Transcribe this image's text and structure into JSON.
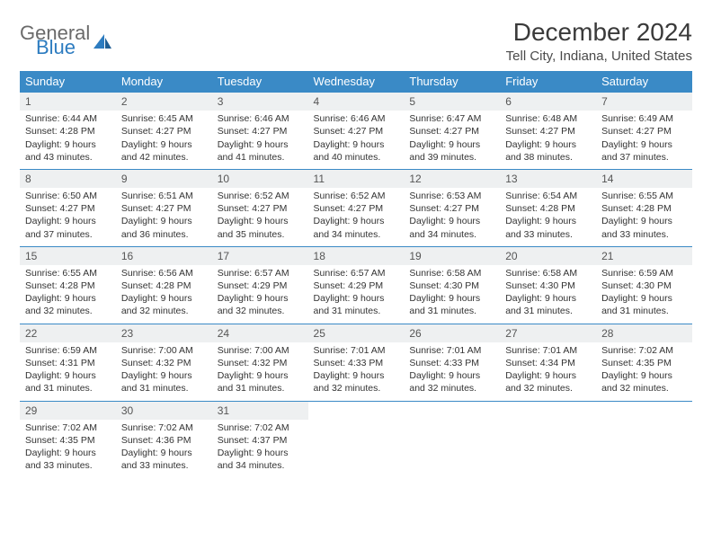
{
  "brand": {
    "general": "General",
    "blue": "Blue"
  },
  "title": "December 2024",
  "location": "Tell City, Indiana, United States",
  "colors": {
    "header_bg": "#3a8ac6",
    "header_text": "#ffffff",
    "daynum_bg": "#eef0f1",
    "border": "#3a8ac6",
    "logo_gray": "#6a6a6a",
    "logo_blue": "#2d7cc0"
  },
  "day_headers": [
    "Sunday",
    "Monday",
    "Tuesday",
    "Wednesday",
    "Thursday",
    "Friday",
    "Saturday"
  ],
  "weeks": [
    [
      {
        "n": "1",
        "sr": "6:44 AM",
        "ss": "4:28 PM",
        "dl": "9 hours and 43 minutes."
      },
      {
        "n": "2",
        "sr": "6:45 AM",
        "ss": "4:27 PM",
        "dl": "9 hours and 42 minutes."
      },
      {
        "n": "3",
        "sr": "6:46 AM",
        "ss": "4:27 PM",
        "dl": "9 hours and 41 minutes."
      },
      {
        "n": "4",
        "sr": "6:46 AM",
        "ss": "4:27 PM",
        "dl": "9 hours and 40 minutes."
      },
      {
        "n": "5",
        "sr": "6:47 AM",
        "ss": "4:27 PM",
        "dl": "9 hours and 39 minutes."
      },
      {
        "n": "6",
        "sr": "6:48 AM",
        "ss": "4:27 PM",
        "dl": "9 hours and 38 minutes."
      },
      {
        "n": "7",
        "sr": "6:49 AM",
        "ss": "4:27 PM",
        "dl": "9 hours and 37 minutes."
      }
    ],
    [
      {
        "n": "8",
        "sr": "6:50 AM",
        "ss": "4:27 PM",
        "dl": "9 hours and 37 minutes."
      },
      {
        "n": "9",
        "sr": "6:51 AM",
        "ss": "4:27 PM",
        "dl": "9 hours and 36 minutes."
      },
      {
        "n": "10",
        "sr": "6:52 AM",
        "ss": "4:27 PM",
        "dl": "9 hours and 35 minutes."
      },
      {
        "n": "11",
        "sr": "6:52 AM",
        "ss": "4:27 PM",
        "dl": "9 hours and 34 minutes."
      },
      {
        "n": "12",
        "sr": "6:53 AM",
        "ss": "4:27 PM",
        "dl": "9 hours and 34 minutes."
      },
      {
        "n": "13",
        "sr": "6:54 AM",
        "ss": "4:28 PM",
        "dl": "9 hours and 33 minutes."
      },
      {
        "n": "14",
        "sr": "6:55 AM",
        "ss": "4:28 PM",
        "dl": "9 hours and 33 minutes."
      }
    ],
    [
      {
        "n": "15",
        "sr": "6:55 AM",
        "ss": "4:28 PM",
        "dl": "9 hours and 32 minutes."
      },
      {
        "n": "16",
        "sr": "6:56 AM",
        "ss": "4:28 PM",
        "dl": "9 hours and 32 minutes."
      },
      {
        "n": "17",
        "sr": "6:57 AM",
        "ss": "4:29 PM",
        "dl": "9 hours and 32 minutes."
      },
      {
        "n": "18",
        "sr": "6:57 AM",
        "ss": "4:29 PM",
        "dl": "9 hours and 31 minutes."
      },
      {
        "n": "19",
        "sr": "6:58 AM",
        "ss": "4:30 PM",
        "dl": "9 hours and 31 minutes."
      },
      {
        "n": "20",
        "sr": "6:58 AM",
        "ss": "4:30 PM",
        "dl": "9 hours and 31 minutes."
      },
      {
        "n": "21",
        "sr": "6:59 AM",
        "ss": "4:30 PM",
        "dl": "9 hours and 31 minutes."
      }
    ],
    [
      {
        "n": "22",
        "sr": "6:59 AM",
        "ss": "4:31 PM",
        "dl": "9 hours and 31 minutes."
      },
      {
        "n": "23",
        "sr": "7:00 AM",
        "ss": "4:32 PM",
        "dl": "9 hours and 31 minutes."
      },
      {
        "n": "24",
        "sr": "7:00 AM",
        "ss": "4:32 PM",
        "dl": "9 hours and 31 minutes."
      },
      {
        "n": "25",
        "sr": "7:01 AM",
        "ss": "4:33 PM",
        "dl": "9 hours and 32 minutes."
      },
      {
        "n": "26",
        "sr": "7:01 AM",
        "ss": "4:33 PM",
        "dl": "9 hours and 32 minutes."
      },
      {
        "n": "27",
        "sr": "7:01 AM",
        "ss": "4:34 PM",
        "dl": "9 hours and 32 minutes."
      },
      {
        "n": "28",
        "sr": "7:02 AM",
        "ss": "4:35 PM",
        "dl": "9 hours and 32 minutes."
      }
    ],
    [
      {
        "n": "29",
        "sr": "7:02 AM",
        "ss": "4:35 PM",
        "dl": "9 hours and 33 minutes."
      },
      {
        "n": "30",
        "sr": "7:02 AM",
        "ss": "4:36 PM",
        "dl": "9 hours and 33 minutes."
      },
      {
        "n": "31",
        "sr": "7:02 AM",
        "ss": "4:37 PM",
        "dl": "9 hours and 34 minutes."
      },
      null,
      null,
      null,
      null
    ]
  ],
  "labels": {
    "sunrise": "Sunrise: ",
    "sunset": "Sunset: ",
    "daylight": "Daylight: "
  }
}
